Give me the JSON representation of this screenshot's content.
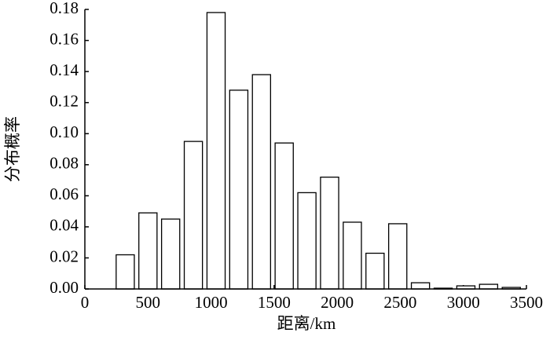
{
  "chart_data": {
    "type": "bar",
    "x_label": "距离/km",
    "y_label": "分布概率",
    "x": [
      320,
      500,
      680,
      860,
      1040,
      1220,
      1400,
      1580,
      1760,
      1940,
      2120,
      2300,
      2480,
      2660,
      2840,
      3020,
      3200,
      3380
    ],
    "values": [
      0.022,
      0.049,
      0.045,
      0.095,
      0.178,
      0.128,
      0.138,
      0.094,
      0.062,
      0.072,
      0.043,
      0.023,
      0.042,
      0.004,
      0.0005,
      0.002,
      0.003,
      0.001
    ],
    "color": "#ffffff",
    "xlim": [
      0,
      3500
    ],
    "xticks": [
      0,
      500,
      1000,
      1500,
      2000,
      2500,
      3000,
      3500
    ],
    "ylim": [
      0,
      0.18
    ],
    "yticks": [
      {
        "value": 0,
        "label": "0.00"
      },
      {
        "value": 0.02,
        "label": "0.02"
      },
      {
        "value": 0.04,
        "label": "0.04"
      },
      {
        "value": 0.06,
        "label": "0.06"
      },
      {
        "value": 0.08,
        "label": "0.08"
      },
      {
        "value": 0.1,
        "label": "0.10"
      },
      {
        "value": 0.12,
        "label": "0.12"
      },
      {
        "value": 0.14,
        "label": "0.14"
      },
      {
        "value": 0.16,
        "label": "0.16"
      },
      {
        "value": 0.18,
        "label": "0.18"
      }
    ]
  }
}
